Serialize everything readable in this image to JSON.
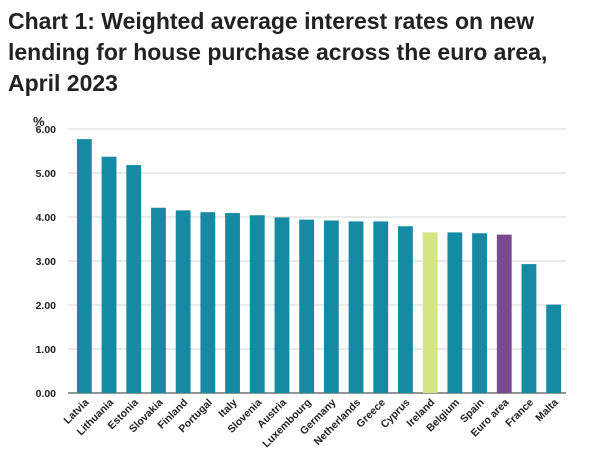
{
  "chart_data": {
    "type": "bar",
    "title": "Chart 1: Weighted average interest rates on new lending for house purchase across the euro area, April 2023",
    "ylabel": "%",
    "xlabel": "",
    "ylim": [
      0,
      6
    ],
    "yticks": [
      "0.00",
      "1.00",
      "2.00",
      "3.00",
      "4.00",
      "5.00",
      "6.00"
    ],
    "grid": true,
    "legend": "none",
    "categories": [
      "Latvia",
      "Lithuania",
      "Estonia",
      "Slovakia",
      "Finland",
      "Portugal",
      "Italy",
      "Slovenia",
      "Austria",
      "Luxembourg",
      "Germany",
      "Netherlands",
      "Greece",
      "Cyprus",
      "Ireland",
      "Belgium",
      "Spain",
      "Euro area",
      "France",
      "Malta"
    ],
    "values": [
      5.77,
      5.37,
      5.18,
      4.21,
      4.15,
      4.11,
      4.09,
      4.04,
      3.99,
      3.94,
      3.92,
      3.9,
      3.9,
      3.79,
      3.65,
      3.65,
      3.63,
      3.6,
      2.93,
      2.01
    ],
    "colors": {
      "default": "#168aa3",
      "Ireland": "#d4e583",
      "Euro area": "#7a4a8e",
      "grid": "#d5d5d5",
      "axis": "#555555",
      "text": "#222222"
    }
  }
}
